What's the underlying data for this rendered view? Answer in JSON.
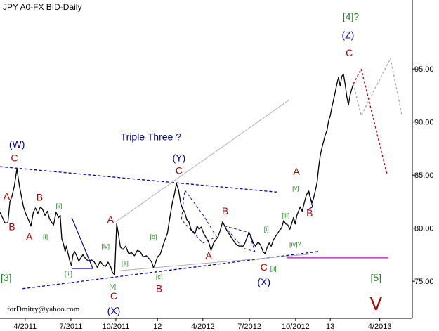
{
  "chart_data": {
    "type": "line",
    "title": "JPY A0-FX BID-Daily",
    "footer": "forDmitry@yahoo.com",
    "ylim": [
      71.5,
      101.5
    ],
    "xlim": [
      0,
      100
    ],
    "y_ticks": [
      {
        "value": 75,
        "label": "75.00"
      },
      {
        "value": 80,
        "label": "80.00"
      },
      {
        "value": 85,
        "label": "85.00"
      },
      {
        "value": 90,
        "label": "90.00"
      },
      {
        "value": 95,
        "label": "95.00"
      }
    ],
    "x_ticks": [
      {
        "x": 6.1,
        "label": "4/2011"
      },
      {
        "x": 17.2,
        "label": "7/2011"
      },
      {
        "x": 28.1,
        "label": "10/2011"
      },
      {
        "x": 38.2,
        "label": "12"
      },
      {
        "x": 49.2,
        "label": "4/2012"
      },
      {
        "x": 60.5,
        "label": "7/2012"
      },
      {
        "x": 71.7,
        "label": "10/2012"
      },
      {
        "x": 80.1,
        "label": "13"
      },
      {
        "x": 92.1,
        "label": "4/2013"
      }
    ],
    "series": [
      {
        "kind": "price",
        "color": "#000000",
        "points": [
          [
            0,
            81.5
          ],
          [
            0.6,
            81
          ],
          [
            1.2,
            80.5
          ],
          [
            1.9,
            80.5
          ],
          [
            2.4,
            82.5
          ],
          [
            2.9,
            83
          ],
          [
            3.5,
            84
          ],
          [
            4.1,
            85.6
          ],
          [
            4.4,
            84.8
          ],
          [
            4.7,
            84
          ],
          [
            5.2,
            83
          ],
          [
            5.7,
            82
          ],
          [
            6.3,
            81.3
          ],
          [
            6.9,
            80.8
          ],
          [
            7.5,
            80.2
          ],
          [
            8.1,
            81.5
          ],
          [
            8.6,
            81.9
          ],
          [
            9.2,
            81.4
          ],
          [
            9.8,
            82
          ],
          [
            10.3,
            81.8
          ],
          [
            10.9,
            81.2
          ],
          [
            11.5,
            81.6
          ],
          [
            12.0,
            80.9
          ],
          [
            12.6,
            80.5
          ],
          [
            13.0,
            80.3
          ],
          [
            13.6,
            81.5
          ],
          [
            14.2,
            81
          ],
          [
            14.6,
            81.2
          ],
          [
            15.0,
            79
          ],
          [
            15.4,
            78.5
          ],
          [
            15.8,
            77.8
          ],
          [
            16.1,
            78.3
          ],
          [
            16.5,
            77.6
          ],
          [
            17.0,
            76.8
          ],
          [
            17.3,
            76.5
          ],
          [
            17.7,
            77.5
          ],
          [
            18.1,
            77.8
          ],
          [
            18.6,
            77.4
          ],
          [
            19.1,
            76.9
          ],
          [
            19.6,
            77.2
          ],
          [
            20.1,
            77.5
          ],
          [
            20.8,
            77.1
          ],
          [
            21.5,
            76.9
          ],
          [
            22.2,
            77
          ],
          [
            22.9,
            76.8
          ],
          [
            23.6,
            76.3
          ],
          [
            24.3,
            76.9
          ],
          [
            25.0,
            76.5
          ],
          [
            25.6,
            76.4
          ],
          [
            26.2,
            76.8
          ],
          [
            26.8,
            76.4
          ],
          [
            27.3,
            75.8
          ],
          [
            27.8,
            75.6
          ],
          [
            28.3,
            80.4
          ],
          [
            28.7,
            79.5
          ],
          [
            29.2,
            78.2
          ],
          [
            29.8,
            78
          ],
          [
            30.5,
            78.3
          ],
          [
            31.2,
            77.6
          ],
          [
            31.9,
            77.7
          ],
          [
            32.6,
            77.4
          ],
          [
            33.3,
            77.9
          ],
          [
            34.0,
            77.8
          ],
          [
            34.7,
            77.3
          ],
          [
            35.5,
            77.4
          ],
          [
            36.2,
            77.1
          ],
          [
            36.8,
            76.8
          ],
          [
            37.2,
            76.3
          ],
          [
            37.6,
            76.6
          ],
          [
            38.2,
            77.3
          ],
          [
            38.8,
            77.5
          ],
          [
            39.4,
            78.2
          ],
          [
            40.0,
            78.9
          ],
          [
            40.6,
            79.5
          ],
          [
            41.2,
            81
          ],
          [
            41.8,
            82.4
          ],
          [
            42.3,
            83.2
          ],
          [
            42.8,
            84.2
          ],
          [
            43.3,
            83.6
          ],
          [
            43.8,
            82.4
          ],
          [
            44.3,
            81.8
          ],
          [
            44.8,
            81.5
          ],
          [
            45.3,
            80.8
          ],
          [
            45.8,
            80.6
          ],
          [
            46.3,
            79.9
          ],
          [
            46.8,
            79.7
          ],
          [
            47.3,
            79.5
          ],
          [
            47.8,
            80.2
          ],
          [
            48.3,
            79.9
          ],
          [
            48.8,
            80.1
          ],
          [
            49.4,
            79.5
          ],
          [
            50.0,
            79.1
          ],
          [
            50.6,
            78.7
          ],
          [
            51.2,
            77.9
          ],
          [
            51.8,
            78.6
          ],
          [
            52.3,
            78.9
          ],
          [
            52.9,
            79.2
          ],
          [
            53.5,
            79.9
          ],
          [
            54.0,
            80.6
          ],
          [
            54.5,
            80.2
          ],
          [
            55.0,
            79.8
          ],
          [
            55.5,
            79.5
          ],
          [
            56.0,
            79.2
          ],
          [
            56.5,
            78.9
          ],
          [
            57.0,
            78.6
          ],
          [
            57.5,
            78.4
          ],
          [
            58.1,
            78.3
          ],
          [
            58.7,
            78.2
          ],
          [
            59.3,
            78.5
          ],
          [
            59.9,
            79.1
          ],
          [
            60.4,
            79.6
          ],
          [
            60.9,
            79.2
          ],
          [
            61.4,
            78.6
          ],
          [
            62.0,
            78.3
          ],
          [
            62.6,
            78.7
          ],
          [
            63.2,
            78.4
          ],
          [
            63.8,
            77.8
          ],
          [
            64.3,
            77.6
          ],
          [
            64.8,
            78.2
          ],
          [
            65.3,
            78.6
          ],
          [
            65.8,
            78.3
          ],
          [
            66.3,
            78.9
          ],
          [
            66.8,
            79.2
          ],
          [
            67.3,
            79.5
          ],
          [
            67.8,
            79.8
          ],
          [
            68.3,
            80
          ],
          [
            68.8,
            80.7
          ],
          [
            69.3,
            80.4
          ],
          [
            69.8,
            80.3
          ],
          [
            70.3,
            79.9
          ],
          [
            70.8,
            80.5
          ],
          [
            71.2,
            81
          ],
          [
            71.6,
            80.4
          ],
          [
            72.0,
            81.2
          ],
          [
            72.4,
            81.6
          ],
          [
            72.8,
            82
          ],
          [
            73.3,
            81.6
          ],
          [
            73.8,
            82.4
          ],
          [
            74.3,
            83.1
          ],
          [
            74.8,
            83.5
          ],
          [
            75.3,
            82.8
          ],
          [
            75.7,
            82.4
          ],
          [
            76.1,
            82.9
          ],
          [
            76.5,
            83.6
          ],
          [
            76.9,
            84.3
          ],
          [
            77.3,
            85.8
          ],
          [
            77.7,
            86.9
          ],
          [
            78.1,
            87.6
          ],
          [
            78.5,
            88.2
          ],
          [
            78.9,
            88.8
          ],
          [
            79.3,
            89.2
          ],
          [
            79.7,
            90.1
          ],
          [
            80.1,
            90.6
          ],
          [
            80.5,
            91.4
          ],
          [
            80.9,
            92.1
          ],
          [
            81.3,
            92.8
          ],
          [
            81.7,
            93.6
          ],
          [
            82.1,
            94.2
          ],
          [
            82.5,
            93.4
          ],
          [
            82.9,
            94.3
          ],
          [
            83.3,
            94.5
          ],
          [
            83.7,
            93.6
          ],
          [
            84.1,
            92.4
          ],
          [
            84.5,
            91.6
          ],
          [
            84.9,
            92.5
          ],
          [
            85.3,
            93.1
          ],
          [
            85.7,
            93.6
          ]
        ]
      },
      {
        "kind": "forecast-main",
        "color": "#cc0000",
        "points": [
          [
            85.7,
            93.6
          ],
          [
            87.6,
            95.0
          ],
          [
            93.9,
            85.0
          ]
        ]
      },
      {
        "kind": "forecast-alt",
        "color": "#aaaaaa",
        "points": [
          [
            85.7,
            93.6
          ],
          [
            87.6,
            90.6
          ],
          [
            94.7,
            96.0
          ],
          [
            97.5,
            90.6
          ]
        ]
      }
    ],
    "lines": [
      {
        "kind": "trend",
        "color": "#0000aa",
        "dash": "4,3",
        "width": 1.3,
        "points": [
          [
            0,
            85.8
          ],
          [
            67.1,
            83.4
          ]
        ]
      },
      {
        "kind": "trend",
        "color": "#0000aa",
        "dash": "4,3",
        "width": 1.3,
        "points": [
          [
            5.5,
            74.3
          ],
          [
            77.2,
            77.8
          ]
        ]
      },
      {
        "kind": "trend",
        "color": "#aaaaaa",
        "dash": "",
        "width": 0.9,
        "points": [
          [
            28.1,
            80.6
          ],
          [
            70.2,
            92.1
          ]
        ]
      },
      {
        "kind": "trend",
        "color": "#aaaaaa",
        "dash": "",
        "width": 0.9,
        "points": [
          [
            29.2,
            76.0
          ],
          [
            76.9,
            77.6
          ]
        ]
      },
      {
        "kind": "level",
        "color": "#cc00cc",
        "dash": "",
        "width": 1.3,
        "points": [
          [
            69.6,
            77.2
          ],
          [
            94.1,
            77.2
          ]
        ]
      },
      {
        "kind": "channel",
        "color": "#0000aa",
        "dash": "4,3",
        "width": 0.9,
        "points": [
          [
            44.8,
            83.6
          ],
          [
            49.5,
            81.1
          ],
          [
            52.5,
            79.2
          ],
          [
            49.2,
            78.6
          ],
          [
            44.0,
            80.8
          ],
          [
            44.8,
            83.6
          ]
        ]
      },
      {
        "kind": "channel",
        "color": "#0000aa",
        "dash": "4,3",
        "width": 0.9,
        "points": [
          [
            54.4,
            80.2
          ],
          [
            60.4,
            79.6
          ],
          [
            61.8,
            77.8
          ],
          [
            59.0,
            78.1
          ],
          [
            54.4,
            80.2
          ]
        ]
      },
      {
        "kind": "triangle",
        "color": "#0000aa",
        "dash": "",
        "width": 1.2,
        "points": [
          [
            17.4,
            81.0
          ],
          [
            22.5,
            76.2
          ],
          [
            17.4,
            76.2
          ]
        ]
      },
      {
        "kind": "triangle",
        "color": "#0000aa",
        "dash": "",
        "width": 1.2,
        "points": [
          [
            74.9,
            83.5
          ],
          [
            75.8,
            82.0
          ],
          [
            74.5,
            81.7
          ]
        ]
      }
    ],
    "annotations": [
      {
        "text": "Triple Three ?",
        "x": 36.6,
        "y": 88.3,
        "color": "#000099",
        "size": "big"
      },
      {
        "text": "(W)",
        "x": 4.1,
        "y": 87.6,
        "color": "#000099",
        "size": "lg"
      },
      {
        "text": "C",
        "x": 3.5,
        "y": 86.3,
        "color": "#aa0000",
        "size": "lg"
      },
      {
        "text": "A",
        "x": 1.6,
        "y": 82.7,
        "color": "#aa0000",
        "size": "lg"
      },
      {
        "text": "B",
        "x": 2.9,
        "y": 79.8,
        "color": "#aa0000",
        "size": "lg"
      },
      {
        "text": "[3]",
        "x": 1.5,
        "y": 75.0,
        "color": "#228822",
        "size": "lg"
      },
      {
        "text": "A",
        "x": 7.1,
        "y": 78.9,
        "color": "#aa0000",
        "size": "lg"
      },
      {
        "text": "B",
        "x": 9.6,
        "y": 82.6,
        "color": "#aa0000",
        "size": "lg"
      },
      {
        "text": "[i]",
        "x": 11.0,
        "y": 79.0,
        "color": "#228822",
        "size": "sm"
      },
      {
        "text": "[ii]",
        "x": 14.3,
        "y": 81.9,
        "color": "#228822",
        "size": "sm"
      },
      {
        "text": "[iii]",
        "x": 16.6,
        "y": 75.5,
        "color": "#228822",
        "size": "sm"
      },
      {
        "text": "[iv]",
        "x": 25.6,
        "y": 78.1,
        "color": "#228822",
        "size": "sm"
      },
      {
        "text": "[v]",
        "x": 27.3,
        "y": 74.3,
        "color": "#228822",
        "size": "sm"
      },
      {
        "text": "A",
        "x": 26.8,
        "y": 80.5,
        "color": "#aa0000",
        "size": "lg"
      },
      {
        "text": "C",
        "x": 27.6,
        "y": 73.3,
        "color": "#aa0000",
        "size": "lg"
      },
      {
        "text": "(X)",
        "x": 27.6,
        "y": 71.9,
        "color": "#000099",
        "size": "lg"
      },
      {
        "text": "[a]",
        "x": 30.3,
        "y": 76.5,
        "color": "#228822",
        "size": "sm"
      },
      {
        "text": "[b]",
        "x": 37.2,
        "y": 79.0,
        "color": "#228822",
        "size": "sm"
      },
      {
        "text": "[c]",
        "x": 38.6,
        "y": 75.2,
        "color": "#228822",
        "size": "sm"
      },
      {
        "text": "B",
        "x": 38.6,
        "y": 74.0,
        "color": "#aa0000",
        "size": "lg"
      },
      {
        "text": "(Y)",
        "x": 43.4,
        "y": 86.3,
        "color": "#000099",
        "size": "lg"
      },
      {
        "text": "C",
        "x": 43.4,
        "y": 85.1,
        "color": "#aa0000",
        "size": "lg"
      },
      {
        "text": "A",
        "x": 50.6,
        "y": 77.1,
        "color": "#aa0000",
        "size": "lg"
      },
      {
        "text": "B",
        "x": 54.6,
        "y": 81.3,
        "color": "#aa0000",
        "size": "lg"
      },
      {
        "text": "[i]",
        "x": 64.6,
        "y": 79.7,
        "color": "#228822",
        "size": "sm"
      },
      {
        "text": "[ii]",
        "x": 66.3,
        "y": 76.0,
        "color": "#228822",
        "size": "sm"
      },
      {
        "text": "C",
        "x": 64.0,
        "y": 76.0,
        "color": "#aa0000",
        "size": "lg"
      },
      {
        "text": "(X)",
        "x": 64.0,
        "y": 74.6,
        "color": "#000099",
        "size": "lg"
      },
      {
        "text": "[iii]",
        "x": 69.3,
        "y": 81.0,
        "color": "#228822",
        "size": "sm"
      },
      {
        "text": "[iv]?",
        "x": 71.6,
        "y": 78.3,
        "color": "#228822",
        "size": "sm"
      },
      {
        "text": "[v]",
        "x": 71.7,
        "y": 83.6,
        "color": "#228822",
        "size": "sm"
      },
      {
        "text": "A",
        "x": 71.9,
        "y": 85.0,
        "color": "#aa0000",
        "size": "lg"
      },
      {
        "text": "B",
        "x": 75.1,
        "y": 81.1,
        "color": "#aa0000",
        "size": "lg"
      },
      {
        "text": "[4]?",
        "x": 85.1,
        "y": 99.6,
        "color": "#228822",
        "size": "lg"
      },
      {
        "text": "(Z)",
        "x": 84.4,
        "y": 97.9,
        "color": "#000099",
        "size": "lg"
      },
      {
        "text": "C",
        "x": 84.7,
        "y": 96.2,
        "color": "#aa0000",
        "size": "lg"
      },
      {
        "text": "[5]",
        "x": 91.2,
        "y": 75.0,
        "color": "#228822",
        "size": "lg"
      },
      {
        "text": "V",
        "x": 91.2,
        "y": 72.3,
        "color": "#aa0000",
        "size": "xl"
      }
    ]
  }
}
